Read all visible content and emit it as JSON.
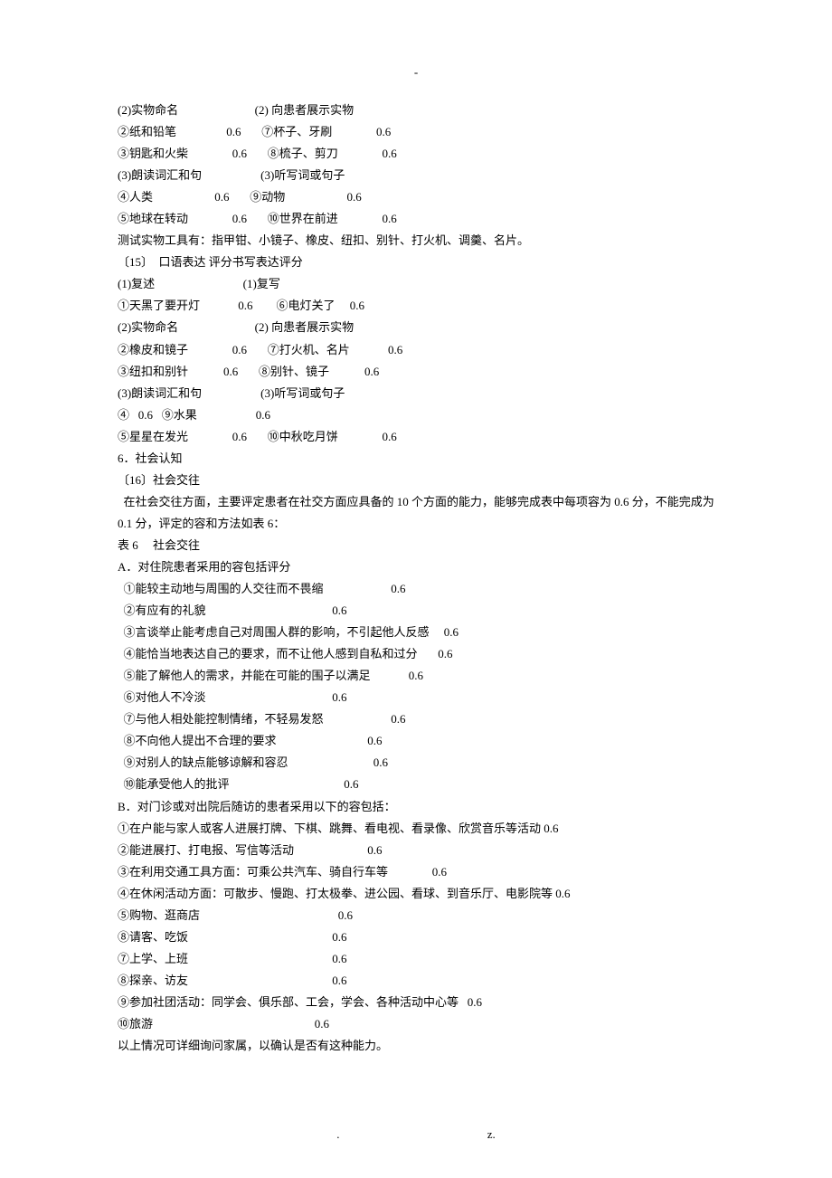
{
  "top_marker": "-",
  "footer_left": ".",
  "footer_right": "z.",
  "score": "0.6",
  "lines": [
    {
      "text": "(2)实物命名                          (2) 向患者展示实物"
    },
    {
      "text": "②纸和铅笔                 0.6       ⑦杯子、牙刷               0.6"
    },
    {
      "text": "③钥匙和火柴               0.6       ⑧梳子、剪刀               0.6"
    },
    {
      "text": "(3)朗读词汇和句                    (3)听写词或句子"
    },
    {
      "text": "④人类                     0.6       ⑨动物                     0.6"
    },
    {
      "text": "⑤地球在转动               0.6       ⑩世界在前进               0.6"
    },
    {
      "text": "测试实物工具有：指甲钳、小镜子、橡皮、纽扣、别针、打火机、调羹、名片。"
    },
    {
      "text": "〔15〕  口语表达 评分书写表达评分"
    },
    {
      "text": "(1)复述                              (1)复写"
    },
    {
      "text": "①天黑了要开灯             0.6        ⑥电灯关了     0.6"
    },
    {
      "text": "(2)实物命名                          (2) 向患者展示实物"
    },
    {
      "text": "②橡皮和镜子               0.6       ⑦打火机、名片             0.6"
    },
    {
      "text": "③纽扣和别针            0.6       ⑧别针、镜子            0.6"
    },
    {
      "text": "(3)朗读词汇和句                    (3)听写词或句子"
    },
    {
      "text": "④   0.6   ⑨水果                    0.6"
    },
    {
      "text": "⑤星星在发光               0.6       ⑩中秋吃月饼               0.6"
    },
    {
      "text": "6．社会认知"
    },
    {
      "text": "〔16〕社会交往"
    },
    {
      "text": "  在社会交往方面，主要评定患者在社交方面应具备的 10 个方面的能力，能够完成表中每项容为 0.6 分，不能完成为"
    },
    {
      "text": "0.1 分，评定的容和方法如表 6："
    },
    {
      "text": "表 6     社会交往"
    },
    {
      "text": "A．对住院患者采用的容包括评分"
    },
    {
      "text": "  ①能较主动地与周围的人交往而不畏缩                       0.6"
    },
    {
      "text": "  ②有应有的礼貌                                           0.6"
    },
    {
      "text": "  ③言谈举止能考虑自己对周围人群的影响，不引起他人反感     0.6"
    },
    {
      "text": "  ④能恰当地表达自己的要求，而不让他人感到自私和过分       0.6"
    },
    {
      "text": "  ⑤能了解他人的需求，并能在可能的围子以满足             0.6"
    },
    {
      "text": "  ⑥对他人不冷淡                                           0.6"
    },
    {
      "text": "  ⑦与他人相处能控制情绪，不轻易发怒                       0.6"
    },
    {
      "text": "  ⑧不向他人提出不合理的要求                               0.6"
    },
    {
      "text": "  ⑨对别人的缺点能够谅解和容忍                             0.6"
    },
    {
      "text": "  ⑩能承受他人的批评                                       0.6"
    },
    {
      "text": "B．对门诊或对出院后随访的患者采用以下的容包括："
    },
    {
      "text": "①在户能与家人或客人进展打牌、下棋、跳舞、看电视、看录像、欣赏音乐等活动 0.6"
    },
    {
      "text": "②能进展打、打电报、写信等活动                         0.6"
    },
    {
      "text": "③在利用交通工具方面：可乘公共汽车、骑自行车等               0.6"
    },
    {
      "text": "④在休闲活动方面：可散步、慢跑、打太极拳、进公园、看球、到音乐厅、电影院等 0.6"
    },
    {
      "text": "⑤购物、逛商店                                               0.6"
    },
    {
      "text": "⑧请客、吃饭                                                 0.6"
    },
    {
      "text": "⑦上学、上班                                                 0.6"
    },
    {
      "text": "⑧探亲、访友                                                 0.6"
    },
    {
      "text": "⑨参加社团活动：同学会、俱乐部、工会，学会、各种活动中心等   0.6"
    },
    {
      "text": "⑩旅游                                                       0.6"
    },
    {
      "text": "以上情况可详细询问家属，以确认是否有这种能力。"
    }
  ]
}
